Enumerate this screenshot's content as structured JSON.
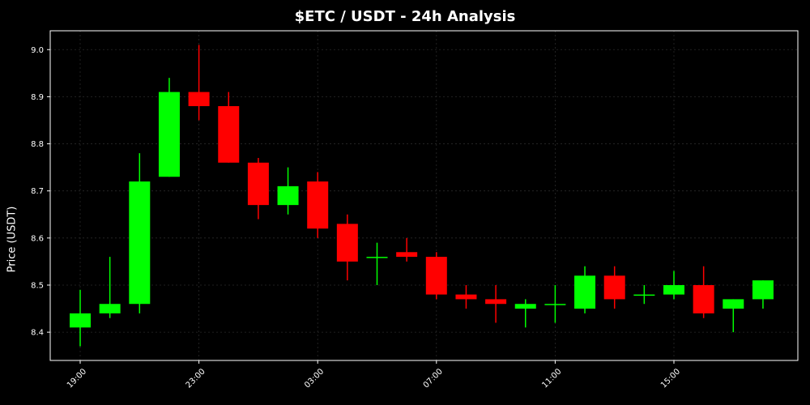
{
  "chart_data": {
    "type": "candlestick",
    "title": "$ETC / USDT - 24h Analysis",
    "xlabel": "",
    "ylabel": "Price (USDT)",
    "ylim": [
      8.34,
      9.04
    ],
    "yticks": [
      8.4,
      8.5,
      8.6,
      8.7,
      8.8,
      8.9,
      9.0
    ],
    "ytick_labels": [
      "8.4",
      "8.5",
      "8.6",
      "8.7",
      "8.8",
      "8.9",
      "9.0"
    ],
    "xticks": [
      {
        "index": 0,
        "label": "19:00"
      },
      {
        "index": 4,
        "label": "23:00"
      },
      {
        "index": 8,
        "label": "03:00"
      },
      {
        "index": 12,
        "label": "07:00"
      },
      {
        "index": 16,
        "label": "11:00"
      },
      {
        "index": 20,
        "label": "15:00"
      }
    ],
    "grid": true,
    "colors": {
      "up": "#00ff00",
      "down": "#ff0000",
      "background": "#000000",
      "text": "#ffffff"
    },
    "candles": [
      {
        "time": "19:00",
        "open": 8.41,
        "high": 8.49,
        "low": 8.37,
        "close": 8.44
      },
      {
        "time": "20:00",
        "open": 8.44,
        "high": 8.56,
        "low": 8.43,
        "close": 8.46
      },
      {
        "time": "21:00",
        "open": 8.46,
        "high": 8.78,
        "low": 8.44,
        "close": 8.72
      },
      {
        "time": "22:00",
        "open": 8.73,
        "high": 8.94,
        "low": 8.73,
        "close": 8.91
      },
      {
        "time": "23:00",
        "open": 8.91,
        "high": 9.01,
        "low": 8.85,
        "close": 8.88
      },
      {
        "time": "00:00",
        "open": 8.88,
        "high": 8.91,
        "low": 8.76,
        "close": 8.76
      },
      {
        "time": "01:00",
        "open": 8.76,
        "high": 8.77,
        "low": 8.64,
        "close": 8.67
      },
      {
        "time": "02:00",
        "open": 8.67,
        "high": 8.75,
        "low": 8.65,
        "close": 8.71
      },
      {
        "time": "03:00",
        "open": 8.72,
        "high": 8.74,
        "low": 8.6,
        "close": 8.62
      },
      {
        "time": "04:00",
        "open": 8.63,
        "high": 8.65,
        "low": 8.51,
        "close": 8.55
      },
      {
        "time": "05:00",
        "open": 8.56,
        "high": 8.59,
        "low": 8.5,
        "close": 8.56
      },
      {
        "time": "06:00",
        "open": 8.57,
        "high": 8.6,
        "low": 8.55,
        "close": 8.56
      },
      {
        "time": "07:00",
        "open": 8.56,
        "high": 8.57,
        "low": 8.47,
        "close": 8.48
      },
      {
        "time": "08:00",
        "open": 8.48,
        "high": 8.5,
        "low": 8.45,
        "close": 8.47
      },
      {
        "time": "09:00",
        "open": 8.47,
        "high": 8.5,
        "low": 8.42,
        "close": 8.46
      },
      {
        "time": "10:00",
        "open": 8.45,
        "high": 8.47,
        "low": 8.41,
        "close": 8.46
      },
      {
        "time": "11:00",
        "open": 8.46,
        "high": 8.5,
        "low": 8.42,
        "close": 8.46
      },
      {
        "time": "12:00",
        "open": 8.45,
        "high": 8.54,
        "low": 8.44,
        "close": 8.52
      },
      {
        "time": "13:00",
        "open": 8.52,
        "high": 8.54,
        "low": 8.45,
        "close": 8.47
      },
      {
        "time": "14:00",
        "open": 8.48,
        "high": 8.5,
        "low": 8.46,
        "close": 8.48
      },
      {
        "time": "15:00",
        "open": 8.48,
        "high": 8.53,
        "low": 8.47,
        "close": 8.5
      },
      {
        "time": "16:00",
        "open": 8.5,
        "high": 8.54,
        "low": 8.43,
        "close": 8.44
      },
      {
        "time": "17:00",
        "open": 8.45,
        "high": 8.47,
        "low": 8.4,
        "close": 8.47
      },
      {
        "time": "18:00",
        "open": 8.47,
        "high": 8.51,
        "low": 8.45,
        "close": 8.51
      }
    ]
  }
}
